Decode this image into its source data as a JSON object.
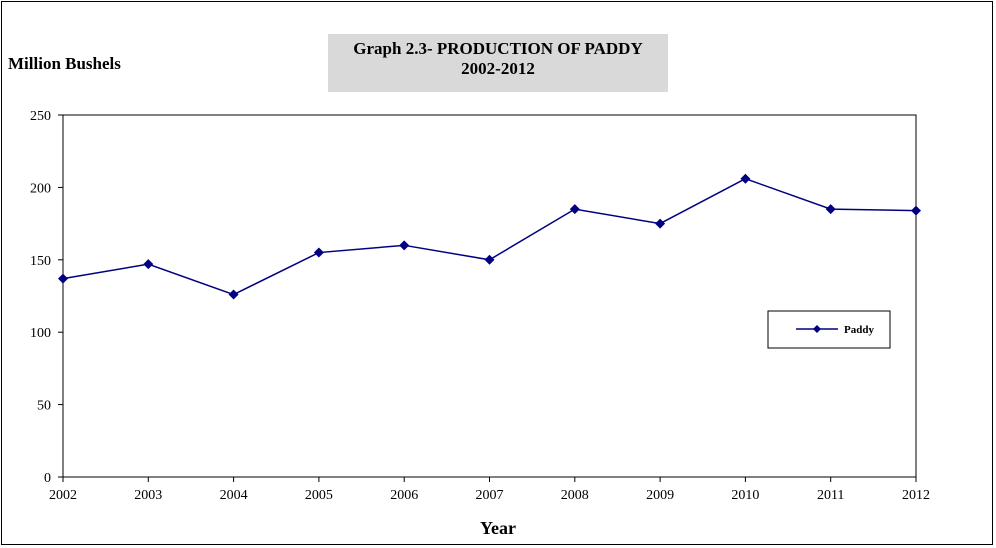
{
  "chart_data": {
    "type": "line",
    "title": "Graph 2.3- PRODUCTION OF PADDY",
    "subtitle": "2002-2012",
    "ylabel": "Million Bushels",
    "xlabel": "Year",
    "x": [
      "2002",
      "2003",
      "2004",
      "2005",
      "2006",
      "2007",
      "2008",
      "2009",
      "2010",
      "2011",
      "2012"
    ],
    "series": [
      {
        "name": "Paddy",
        "values": [
          137,
          147,
          126,
          155,
          160,
          150,
          185,
          175,
          206,
          185,
          184
        ]
      }
    ],
    "ylim": [
      0,
      250
    ],
    "yticks": [
      0,
      50,
      100,
      150,
      200,
      250
    ],
    "grid": false,
    "legend_position": "right",
    "colors": {
      "line": "#000080",
      "marker": "#000080"
    }
  }
}
